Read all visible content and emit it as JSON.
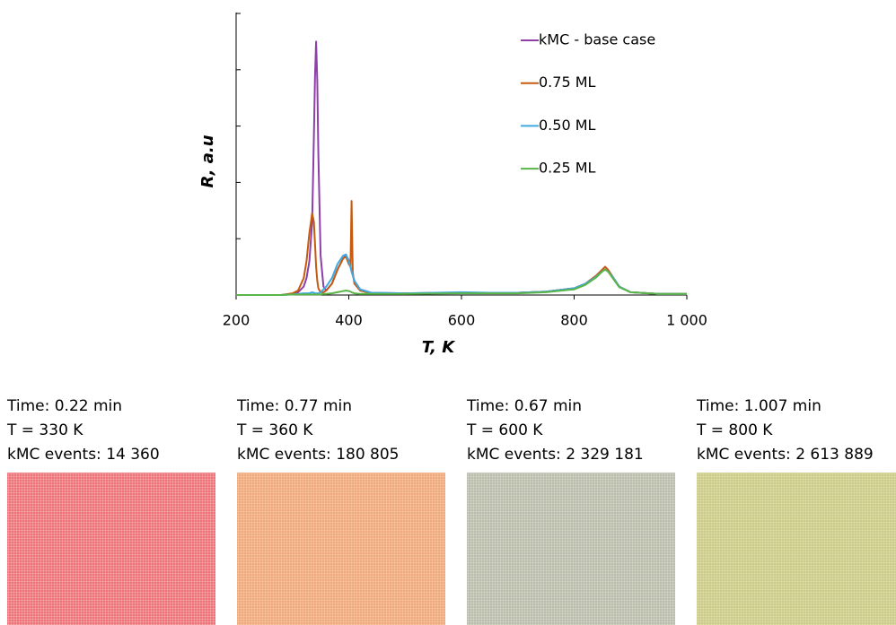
{
  "chart_data": {
    "type": "line",
    "xlabel": "T, K",
    "ylabel": "R, a.u",
    "x": [
      200,
      280,
      300,
      310,
      320,
      325,
      330,
      335,
      338,
      340,
      342,
      344,
      346,
      350,
      355,
      360,
      370,
      380,
      390,
      395,
      400,
      403,
      405,
      407,
      410,
      420,
      440,
      500,
      600,
      650,
      700,
      750,
      800,
      820,
      840,
      850,
      855,
      860,
      870,
      880,
      900,
      950,
      1000
    ],
    "xlim": [
      200,
      1000
    ],
    "xticks": [
      200,
      400,
      600,
      800,
      {
        "value": 1000,
        "label": "1 000"
      }
    ],
    "ylim": [
      0,
      5
    ],
    "yticks": [
      0,
      1,
      2,
      3,
      4,
      5
    ],
    "legend": "upper right",
    "series": [
      {
        "name": "kMC - base case",
        "color": "#8e3fa8",
        "values": [
          0,
          0,
          0.02,
          0.05,
          0.15,
          0.3,
          0.6,
          1.3,
          2.8,
          3.9,
          4.5,
          3.8,
          2.5,
          0.7,
          0.15,
          0.08,
          0.2,
          0.45,
          0.65,
          0.7,
          0.62,
          0.5,
          0.42,
          0.35,
          0.25,
          0.1,
          0.04,
          0.03,
          0.04,
          0.04,
          0.04,
          0.06,
          0.12,
          0.2,
          0.35,
          0.45,
          0.5,
          0.45,
          0.3,
          0.15,
          0.05,
          0.02,
          0.02
        ]
      },
      {
        "name": "0.75 ML",
        "color": "#c55a11",
        "values": [
          0,
          0,
          0.03,
          0.08,
          0.3,
          0.6,
          1.1,
          1.45,
          1.3,
          0.9,
          0.5,
          0.25,
          0.12,
          0.05,
          0.05,
          0.08,
          0.2,
          0.45,
          0.65,
          0.68,
          0.55,
          0.5,
          1.67,
          0.4,
          0.2,
          0.08,
          0.03,
          0.03,
          0.04,
          0.04,
          0.04,
          0.06,
          0.12,
          0.2,
          0.35,
          0.45,
          0.5,
          0.45,
          0.3,
          0.15,
          0.05,
          0.02,
          0.02
        ]
      },
      {
        "name": "0.50 ML",
        "color": "#3fa9e0",
        "values": [
          0,
          0,
          0.01,
          0.02,
          0.03,
          0.03,
          0.03,
          0.05,
          0.04,
          0.03,
          0.03,
          0.03,
          0.03,
          0.05,
          0.1,
          0.15,
          0.3,
          0.55,
          0.7,
          0.72,
          0.6,
          0.5,
          0.42,
          0.35,
          0.25,
          0.1,
          0.04,
          0.03,
          0.05,
          0.04,
          0.04,
          0.06,
          0.12,
          0.2,
          0.33,
          0.42,
          0.45,
          0.42,
          0.3,
          0.15,
          0.05,
          0.02,
          0.02
        ]
      },
      {
        "name": "0.25 ML",
        "color": "#5ab548",
        "values": [
          0,
          0,
          0.01,
          0.01,
          0.01,
          0.01,
          0.01,
          0.01,
          0.01,
          0.01,
          0.01,
          0.01,
          0.01,
          0.01,
          0.02,
          0.02,
          0.03,
          0.05,
          0.07,
          0.08,
          0.07,
          0.06,
          0.05,
          0.04,
          0.03,
          0.02,
          0.02,
          0.02,
          0.03,
          0.03,
          0.03,
          0.05,
          0.1,
          0.18,
          0.32,
          0.42,
          0.45,
          0.42,
          0.28,
          0.14,
          0.05,
          0.02,
          0.02
        ]
      }
    ]
  },
  "panels": [
    {
      "time": "Time: 0.22 min",
      "temp": "T = 330 K",
      "events": "kMC events: 14 360"
    },
    {
      "time": "Time: 0.77 min",
      "temp": "T = 360 K",
      "events": "kMC events: 180 805"
    },
    {
      "time": "Time: 0.67 min",
      "temp": "T = 600 K",
      "events": "kMC events: 2 329 181"
    },
    {
      "time": "Time: 1.007 min",
      "temp": "T = 800 K",
      "events": "kMC events: 2 613 889"
    }
  ]
}
